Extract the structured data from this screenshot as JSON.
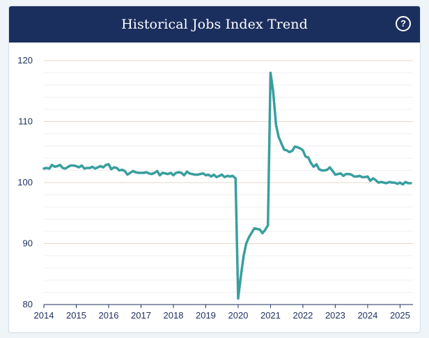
{
  "header": {
    "title": "Historical Jobs Index Trend",
    "help_glyph": "?",
    "help_icon": "question-circle-icon"
  },
  "chart_data": {
    "type": "line",
    "title": "Historical Jobs Index Trend",
    "xlabel": "",
    "ylabel": "",
    "xlim": [
      2014.0,
      2025.4
    ],
    "ylim": [
      80,
      120
    ],
    "y_ticks": [
      80,
      90,
      100,
      110,
      120
    ],
    "x_ticks": [
      2014,
      2015,
      2016,
      2017,
      2018,
      2019,
      2020,
      2021,
      2022,
      2023,
      2024,
      2025
    ],
    "grid": "horizontal",
    "legend": "none",
    "line_color": "#3a9e9e",
    "series": [
      {
        "x": [
          2014.0,
          2014.08,
          2014.17,
          2014.25,
          2014.33,
          2014.42,
          2014.5,
          2014.58,
          2014.67,
          2014.75,
          2014.83,
          2014.92,
          2015.0,
          2015.08,
          2015.17,
          2015.25,
          2015.33,
          2015.42,
          2015.5,
          2015.58,
          2015.67,
          2015.75,
          2015.83,
          2015.92,
          2016.0,
          2016.08,
          2016.17,
          2016.25,
          2016.33,
          2016.42,
          2016.5,
          2016.58,
          2016.67,
          2016.75,
          2016.83,
          2016.92,
          2017.0,
          2017.08,
          2017.17,
          2017.25,
          2017.33,
          2017.42,
          2017.5,
          2017.58,
          2017.67,
          2017.75,
          2017.83,
          2017.92,
          2018.0,
          2018.08,
          2018.17,
          2018.25,
          2018.33,
          2018.42,
          2018.5,
          2018.58,
          2018.67,
          2018.75,
          2018.83,
          2018.92,
          2019.0,
          2019.08,
          2019.17,
          2019.25,
          2019.33,
          2019.42,
          2019.5,
          2019.58,
          2019.67,
          2019.75,
          2019.83,
          2019.92,
          2020.0,
          2020.08,
          2020.17,
          2020.25,
          2020.33,
          2020.42,
          2020.5,
          2020.58,
          2020.67,
          2020.75,
          2020.83,
          2020.92,
          2021.0,
          2021.08,
          2021.17,
          2021.25,
          2021.33,
          2021.42,
          2021.5,
          2021.58,
          2021.67,
          2021.75,
          2021.83,
          2021.92,
          2022.0,
          2022.08,
          2022.17,
          2022.25,
          2022.33,
          2022.42,
          2022.5,
          2022.58,
          2022.67,
          2022.75,
          2022.83,
          2022.92,
          2023.0,
          2023.08,
          2023.17,
          2023.25,
          2023.33,
          2023.42,
          2023.5,
          2023.58,
          2023.67,
          2023.75,
          2023.83,
          2023.92,
          2024.0,
          2024.08,
          2024.17,
          2024.25,
          2024.33,
          2024.42,
          2024.5,
          2024.58,
          2024.67,
          2024.75,
          2024.83,
          2024.92,
          2025.0,
          2025.08,
          2025.17,
          2025.25,
          2025.33
        ],
        "values": [
          102.3,
          102.4,
          102.3,
          102.9,
          102.6,
          102.7,
          102.9,
          102.4,
          102.3,
          102.6,
          102.8,
          102.8,
          102.7,
          102.5,
          102.8,
          102.3,
          102.4,
          102.4,
          102.6,
          102.3,
          102.5,
          102.7,
          102.5,
          102.9,
          103.0,
          102.2,
          102.5,
          102.4,
          102.0,
          102.1,
          101.9,
          101.3,
          101.6,
          101.9,
          101.7,
          101.6,
          101.6,
          101.6,
          101.7,
          101.5,
          101.4,
          101.6,
          101.9,
          101.2,
          101.6,
          101.5,
          101.4,
          101.6,
          101.2,
          101.6,
          101.7,
          101.6,
          101.2,
          101.8,
          101.5,
          101.4,
          101.3,
          101.3,
          101.4,
          101.5,
          101.2,
          101.3,
          101.0,
          101.3,
          100.9,
          101.1,
          101.3,
          100.9,
          101.1,
          101.0,
          101.1,
          100.7,
          81.0,
          84.5,
          88.0,
          90.0,
          91.0,
          91.8,
          92.5,
          92.4,
          92.3,
          91.7,
          92.2,
          93.0,
          118.0,
          115.0,
          109.5,
          107.5,
          106.5,
          105.4,
          105.3,
          105.0,
          105.2,
          105.9,
          105.8,
          105.6,
          105.3,
          104.3,
          104.1,
          103.2,
          102.6,
          103.0,
          102.2,
          102.0,
          102.0,
          102.1,
          102.5,
          101.9,
          101.3,
          101.4,
          101.5,
          101.1,
          101.4,
          101.4,
          101.3,
          101.0,
          101.0,
          101.1,
          100.9,
          100.9,
          101.0,
          100.3,
          100.7,
          100.4,
          100.0,
          100.1,
          100.0,
          99.9,
          100.1,
          100.0,
          100.0,
          99.8,
          100.0,
          99.7,
          100.1,
          99.9,
          99.9
        ]
      }
    ]
  }
}
